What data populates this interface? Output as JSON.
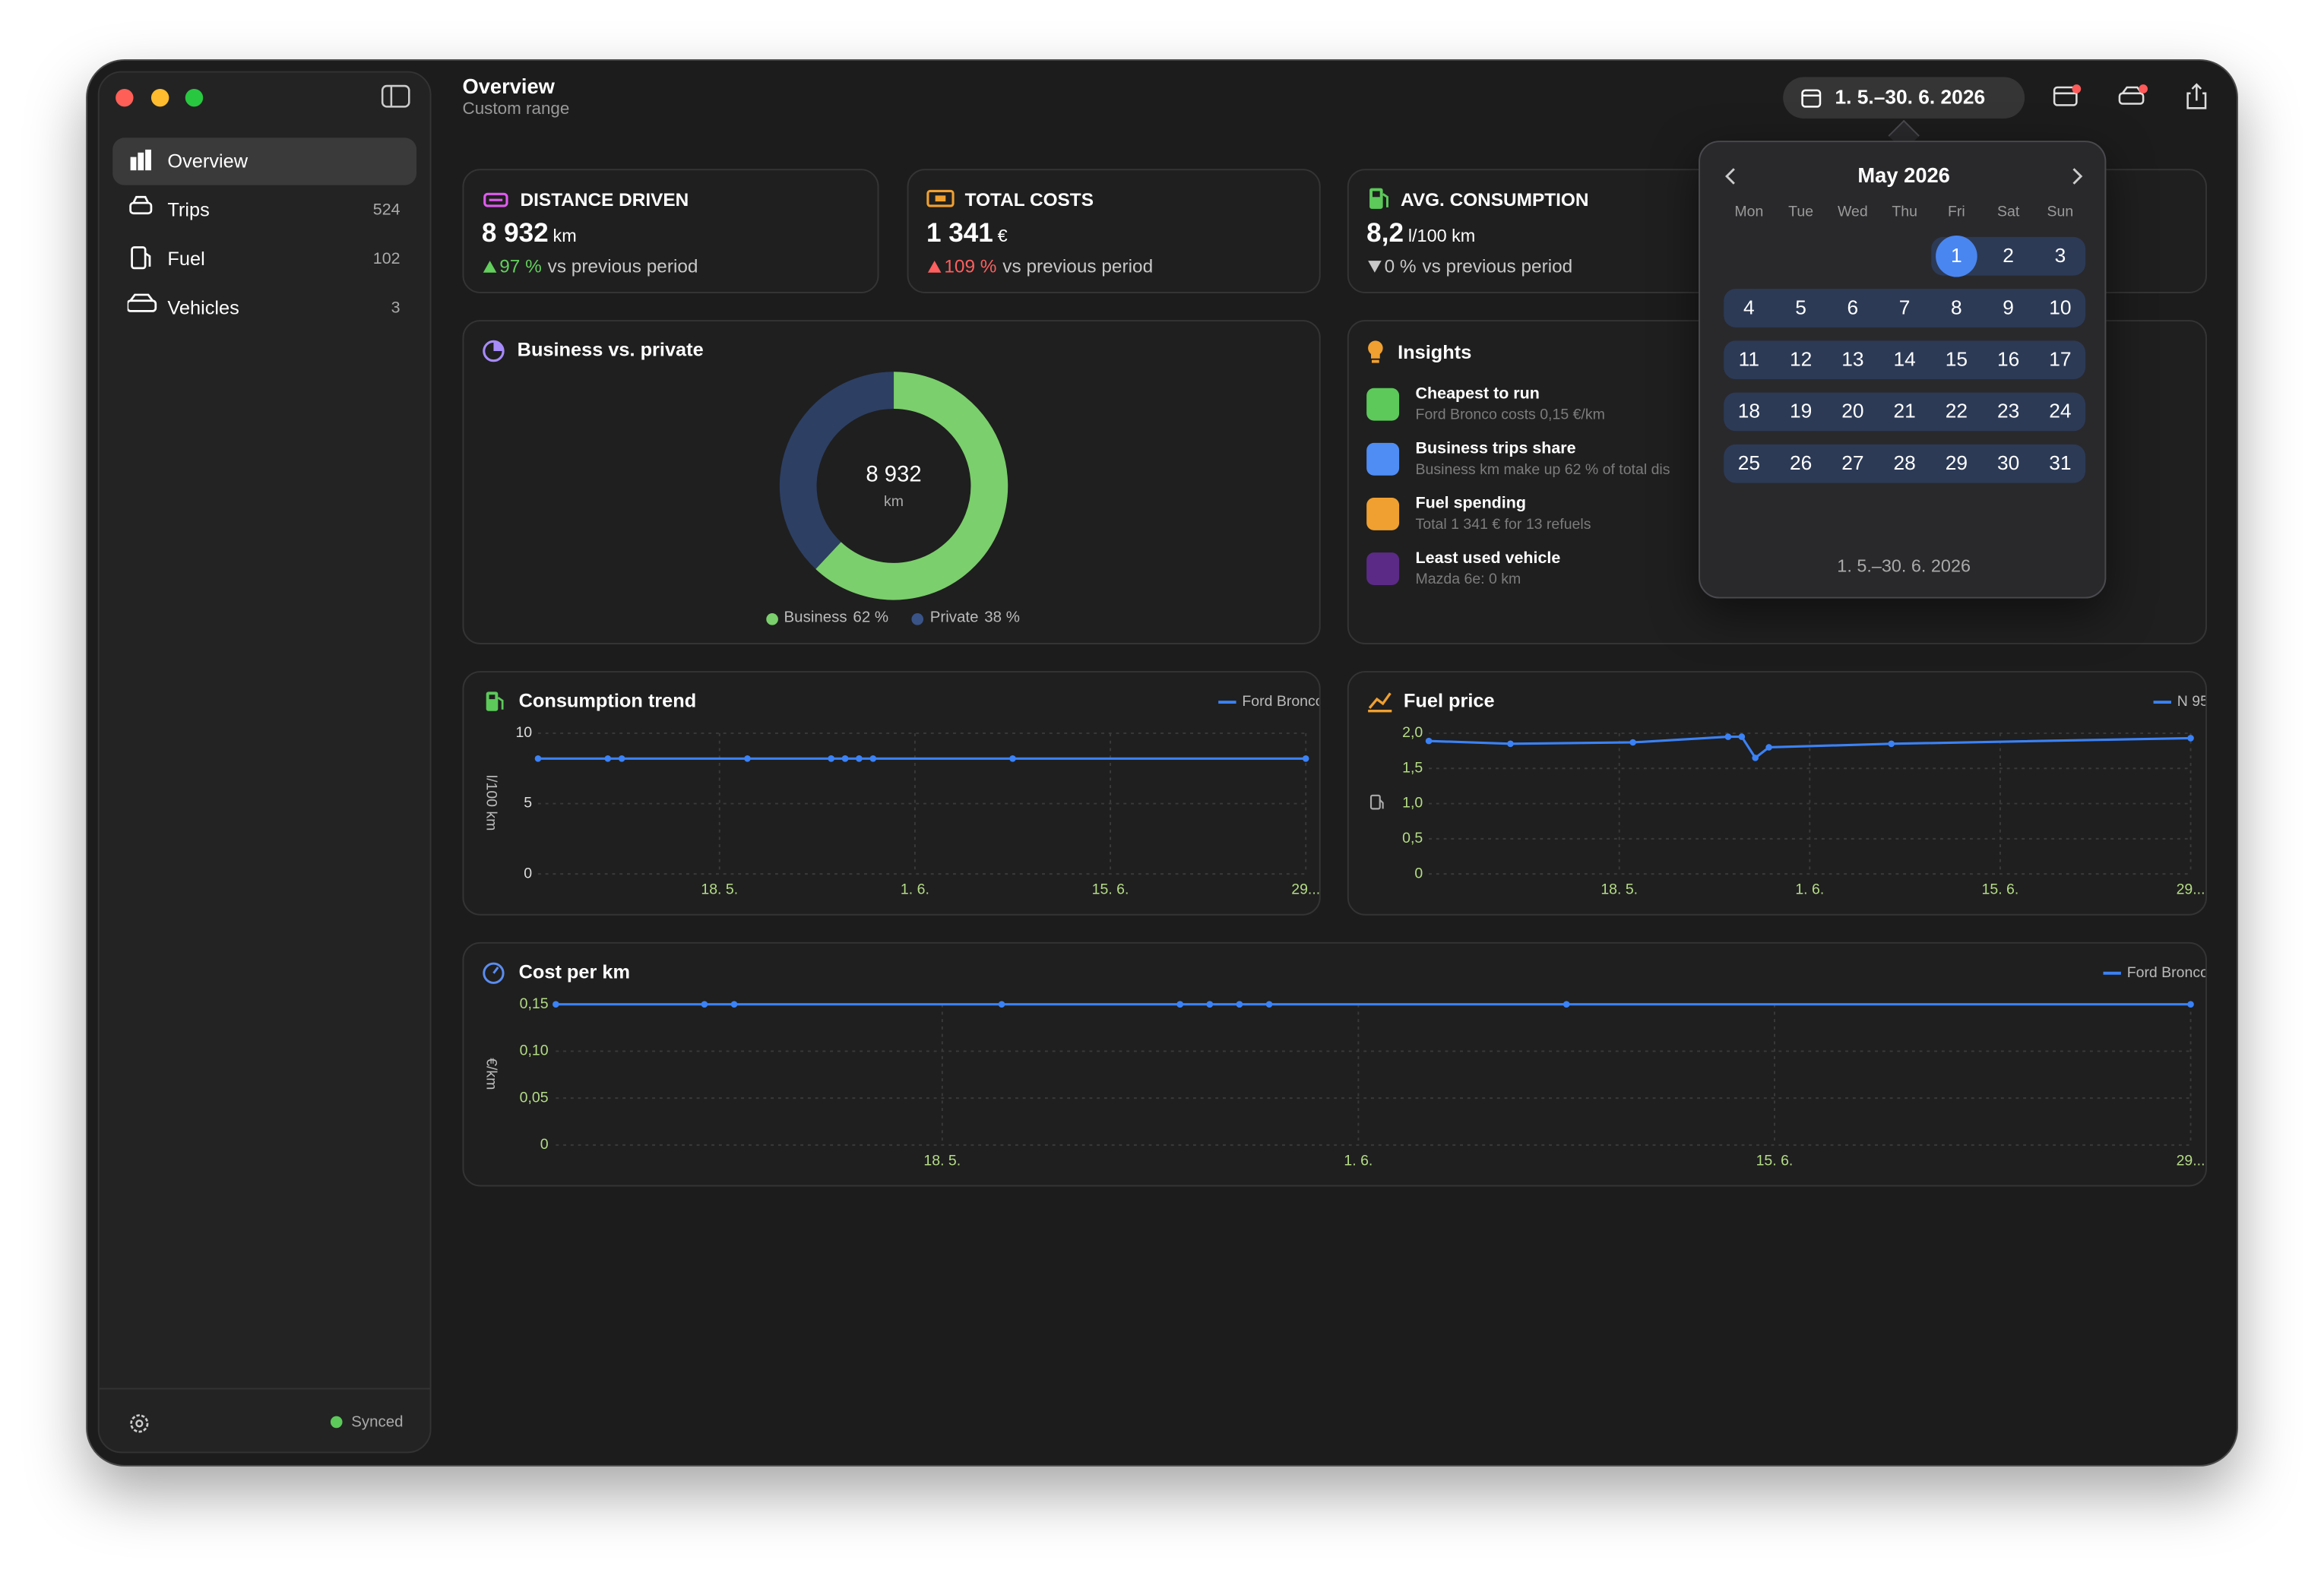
{
  "sidebar": {
    "items": [
      {
        "label": "Overview"
      },
      {
        "label": "Trips",
        "count": 524
      },
      {
        "label": "Fuel",
        "count": 102
      },
      {
        "label": "Vehicles",
        "count": 3
      }
    ],
    "status": "Synced"
  },
  "header": {
    "title": "Overview",
    "subtitle": "Custom range",
    "date_range": "1. 5.–30. 6. 2026"
  },
  "kpis": [
    {
      "title": "DISTANCE DRIVEN",
      "value": "8 932",
      "unit": "km",
      "change": "97 %",
      "note": "vs previous period"
    },
    {
      "title": "TOTAL COSTS",
      "value": "1 341",
      "unit": "€",
      "change": "109 %",
      "note": "vs previous period"
    },
    {
      "title": "AVG. CONSUMPTION",
      "value": "8,2",
      "unit": "l/100 km",
      "change": "0 %",
      "note": "vs previous period"
    }
  ],
  "insights": {
    "title": "Insights",
    "items": [
      {
        "title": "Cheapest to run",
        "text": "Ford Bronco costs 0,15 €/km"
      },
      {
        "title": "Business trips share",
        "text": "Business km make up 62 % of total dis"
      },
      {
        "title": "Fuel spending",
        "text": "Total 1 341 € for 13 refuels"
      },
      {
        "title": "Least used vehicle",
        "text": "Mazda 6e: 0 km"
      }
    ]
  },
  "calendar": {
    "month": "May 2026",
    "weekdays": [
      "Mon",
      "Tue",
      "Wed",
      "Thu",
      "Fri",
      "Sat",
      "Sun"
    ],
    "days": [
      1,
      2,
      3,
      4,
      5,
      6,
      7,
      8,
      9,
      10,
      11,
      12,
      13,
      14,
      15,
      16,
      17,
      18,
      19,
      20,
      21,
      22,
      23,
      24,
      25,
      26,
      27,
      28,
      29,
      30,
      31
    ],
    "range": "1. 5.–30. 6. 2026"
  },
  "chart_data": [
    {
      "type": "pie",
      "title": "Business vs. private",
      "center_value": "8 932",
      "center_unit": "km",
      "series": [
        {
          "name": "Business",
          "color": "#7bcf6c"
        },
        {
          "name": "Private",
          "color": "#2d3f63"
        }
      ],
      "values": [
        62,
        38
      ],
      "value_labels": [
        "62 %",
        "38 %"
      ]
    },
    {
      "type": "line",
      "title": "Consumption trend",
      "y_label": "l/100 km",
      "x": [
        "5. 5.",
        "10. 5.",
        "11. 5.",
        "20. 5.",
        "26. 5.",
        "26. 5.",
        "27. 5.",
        "27. 5.",
        "28. 5.",
        "28. 5.",
        "29. 5.",
        "8. 6.",
        "29. 6."
      ],
      "series": [
        {
          "name": "Ford Bronco",
          "color": "#3b82f6",
          "values": [
            8.2,
            8.2,
            8.2,
            8.2,
            8.2,
            8.2,
            8.2,
            8.2,
            8.2,
            8.2,
            8.2,
            8.2,
            8.2
          ]
        }
      ],
      "xlim": [
        "5. 5.",
        "29. 6."
      ],
      "xticks": [
        "18. 5.",
        "1. 6.",
        "15. 6.",
        {
          "value": "29. 6.",
          "label": "29..."
        }
      ],
      "ylim": [
        0,
        10
      ],
      "yticks": [
        0,
        5,
        10
      ],
      "grid": true
    },
    {
      "type": "line",
      "title": "Fuel price",
      "x": [
        "4. 5.",
        "10. 5.",
        "19. 5.",
        "26. 5.",
        "27. 5.",
        "28. 5.",
        "29. 5.",
        "7. 6.",
        "29. 6."
      ],
      "series": [
        {
          "name": "N 95",
          "color": "#3b82f6",
          "values": [
            1.89,
            1.85,
            1.87,
            1.95,
            1.95,
            1.65,
            1.8,
            1.85,
            1.93
          ]
        }
      ],
      "xlim": [
        "4. 5.",
        "29. 6."
      ],
      "xticks": [
        "18. 5.",
        "1. 6.",
        "15. 6.",
        {
          "value": "29. 6.",
          "label": "29..."
        }
      ],
      "ylim": [
        0,
        2
      ],
      "yticks": [
        0,
        {
          "value": 0.5,
          "label": "0,5"
        },
        {
          "value": 1,
          "label": "1,0"
        },
        {
          "value": 1.5,
          "label": "1,5"
        },
        {
          "value": 2,
          "label": "2,0"
        }
      ],
      "grid": true
    },
    {
      "type": "line",
      "title": "Cost per km",
      "y_label": "€/km",
      "x": [
        "5. 5.",
        "10. 5.",
        "11. 5.",
        "20. 5.",
        "26. 5.",
        "26. 5.",
        "27. 5.",
        "27. 5.",
        "28. 5.",
        "28. 5.",
        "29. 5.",
        "8. 6.",
        "29. 6."
      ],
      "series": [
        {
          "name": "Ford Bronco",
          "color": "#3b82f6",
          "values": [
            0.15,
            0.15,
            0.15,
            0.15,
            0.15,
            0.15,
            0.15,
            0.15,
            0.15,
            0.15,
            0.15,
            0.15,
            0.15
          ]
        }
      ],
      "xlim": [
        "5. 5.",
        "29. 6."
      ],
      "xticks": [
        "18. 5.",
        "1. 6.",
        "15. 6.",
        {
          "value": "29. 6.",
          "label": "29..."
        }
      ],
      "ylim": [
        0,
        0.15
      ],
      "yticks": [
        0,
        {
          "value": 0.05,
          "label": "0,05"
        },
        {
          "value": 0.1,
          "label": "0,10"
        },
        {
          "value": 0.15,
          "label": "0,15"
        }
      ],
      "grid": true
    }
  ]
}
